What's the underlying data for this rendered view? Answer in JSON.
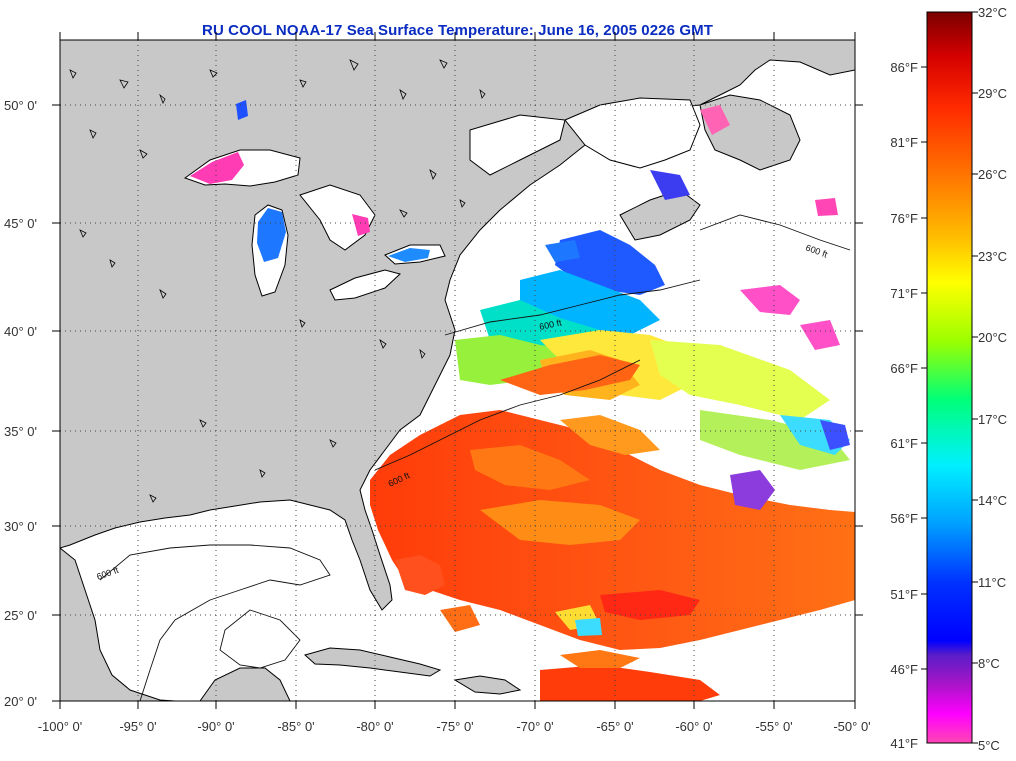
{
  "title": "RU COOL  NOAA-17  Sea Surface Temperature:  June 16, 2005 0226 GMT",
  "lat_labels": [
    "50° 0'",
    "45° 0'",
    "40° 0'",
    "35° 0'",
    "30° 0'",
    "25° 0'",
    "20° 0'"
  ],
  "lon_labels": [
    "-100° 0'",
    "-95° 0'",
    "-90° 0'",
    "-85° 0'",
    "-80° 0'",
    "-75° 0'",
    "-70° 0'",
    "-65° 0'",
    "-60° 0'",
    "-55° 0'",
    "-50° 0'"
  ],
  "colorbar": {
    "fahrenheit_labels": [
      "86°F",
      "81°F",
      "76°F",
      "71°F",
      "66°F",
      "61°F",
      "56°F",
      "51°F",
      "46°F",
      "41°F"
    ],
    "celsius_labels": [
      "32°C",
      "29°C",
      "26°C",
      "23°C",
      "20°C",
      "17°C",
      "14°C",
      "11°C",
      "8°C",
      "5°C"
    ],
    "colors_top_to_bottom": [
      "#7a0000",
      "#d40000",
      "#ff2a00",
      "#ff7a00",
      "#ffbf00",
      "#ffff00",
      "#9cff00",
      "#00ff78",
      "#00f0ff",
      "#00a0ff",
      "#0032ff",
      "#0000ff",
      "#5a1ec8",
      "#aa14c8",
      "#ff00ff",
      "#ff46b4"
    ]
  },
  "contour_label": "600 ft",
  "colors": {
    "land": "#c8c8c8",
    "water_no_data": "#ffffff",
    "coastline": "#000000",
    "grid": "#444444",
    "title": "#0a2cc0"
  }
}
